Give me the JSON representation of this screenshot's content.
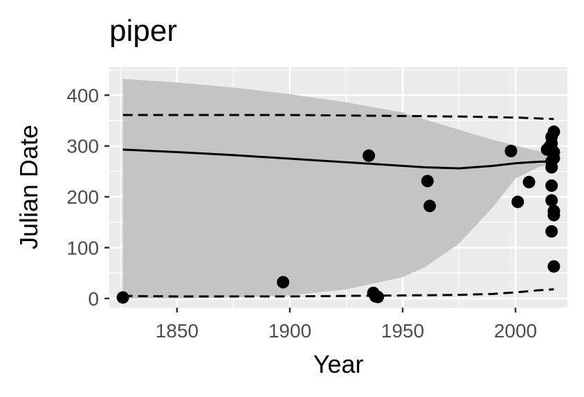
{
  "chart_data": {
    "type": "scatter",
    "title": "piper",
    "xlabel": "Year",
    "ylabel": "Julian Date",
    "xlim": [
      1820,
      2023
    ],
    "ylim": [
      -18,
      455
    ],
    "x_ticks": [
      1850,
      1900,
      1950,
      2000
    ],
    "y_ticks": [
      0,
      100,
      200,
      300,
      400
    ],
    "grid": true,
    "colors": {
      "panel_background": "#ebebeb",
      "grid": "#ffffff",
      "ribbon": "#c4c4c4",
      "points": "#000000",
      "lines": "#000000"
    },
    "points": [
      {
        "x": 1826,
        "y": 2
      },
      {
        "x": 1897,
        "y": 32
      },
      {
        "x": 1935,
        "y": 281
      },
      {
        "x": 1937,
        "y": 11
      },
      {
        "x": 1938,
        "y": 4
      },
      {
        "x": 1939,
        "y": 3
      },
      {
        "x": 1961,
        "y": 231
      },
      {
        "x": 1962,
        "y": 182
      },
      {
        "x": 1998,
        "y": 290
      },
      {
        "x": 2001,
        "y": 190
      },
      {
        "x": 2006,
        "y": 229
      },
      {
        "x": 2014,
        "y": 293
      },
      {
        "x": 2015,
        "y": 298
      },
      {
        "x": 2016,
        "y": 318
      },
      {
        "x": 2016,
        "y": 305
      },
      {
        "x": 2016,
        "y": 290
      },
      {
        "x": 2016,
        "y": 270
      },
      {
        "x": 2016,
        "y": 258
      },
      {
        "x": 2016,
        "y": 222
      },
      {
        "x": 2016,
        "y": 193
      },
      {
        "x": 2016,
        "y": 132
      },
      {
        "x": 2017,
        "y": 328
      },
      {
        "x": 2017,
        "y": 288
      },
      {
        "x": 2017,
        "y": 276
      },
      {
        "x": 2017,
        "y": 172
      },
      {
        "x": 2017,
        "y": 164
      },
      {
        "x": 2017,
        "y": 63
      }
    ],
    "trend_line": [
      {
        "x": 1826,
        "y": 293
      },
      {
        "x": 1850,
        "y": 288
      },
      {
        "x": 1875,
        "y": 282
      },
      {
        "x": 1900,
        "y": 275
      },
      {
        "x": 1925,
        "y": 268
      },
      {
        "x": 1950,
        "y": 261
      },
      {
        "x": 1960,
        "y": 258
      },
      {
        "x": 1975,
        "y": 256
      },
      {
        "x": 1990,
        "y": 261
      },
      {
        "x": 2000,
        "y": 266
      },
      {
        "x": 2010,
        "y": 269
      },
      {
        "x": 2017,
        "y": 270
      }
    ],
    "confidence_band": [
      {
        "x": 1826,
        "lower": 0,
        "upper": 432
      },
      {
        "x": 1850,
        "lower": 0,
        "upper": 425
      },
      {
        "x": 1875,
        "lower": 2,
        "upper": 415
      },
      {
        "x": 1900,
        "lower": 6,
        "upper": 402
      },
      {
        "x": 1925,
        "lower": 18,
        "upper": 386
      },
      {
        "x": 1950,
        "lower": 42,
        "upper": 366
      },
      {
        "x": 1960,
        "lower": 62,
        "upper": 352
      },
      {
        "x": 1975,
        "lower": 108,
        "upper": 332
      },
      {
        "x": 1990,
        "lower": 180,
        "upper": 312
      },
      {
        "x": 2000,
        "lower": 236,
        "upper": 301
      },
      {
        "x": 2010,
        "lower": 258,
        "upper": 290
      },
      {
        "x": 2017,
        "lower": 266,
        "upper": 286
      }
    ],
    "upper_dashed": [
      {
        "x": 1826,
        "y": 361
      },
      {
        "x": 1850,
        "y": 361
      },
      {
        "x": 1875,
        "y": 361
      },
      {
        "x": 1900,
        "y": 361
      },
      {
        "x": 1925,
        "y": 360
      },
      {
        "x": 1950,
        "y": 359
      },
      {
        "x": 1975,
        "y": 358
      },
      {
        "x": 2000,
        "y": 356
      },
      {
        "x": 2017,
        "y": 353
      }
    ],
    "lower_dashed": [
      {
        "x": 1826,
        "y": 5
      },
      {
        "x": 1850,
        "y": 4
      },
      {
        "x": 1875,
        "y": 4
      },
      {
        "x": 1900,
        "y": 4
      },
      {
        "x": 1925,
        "y": 5
      },
      {
        "x": 1950,
        "y": 6
      },
      {
        "x": 1975,
        "y": 7
      },
      {
        "x": 1990,
        "y": 9
      },
      {
        "x": 2000,
        "y": 12
      },
      {
        "x": 2010,
        "y": 16
      },
      {
        "x": 2017,
        "y": 18
      }
    ]
  }
}
